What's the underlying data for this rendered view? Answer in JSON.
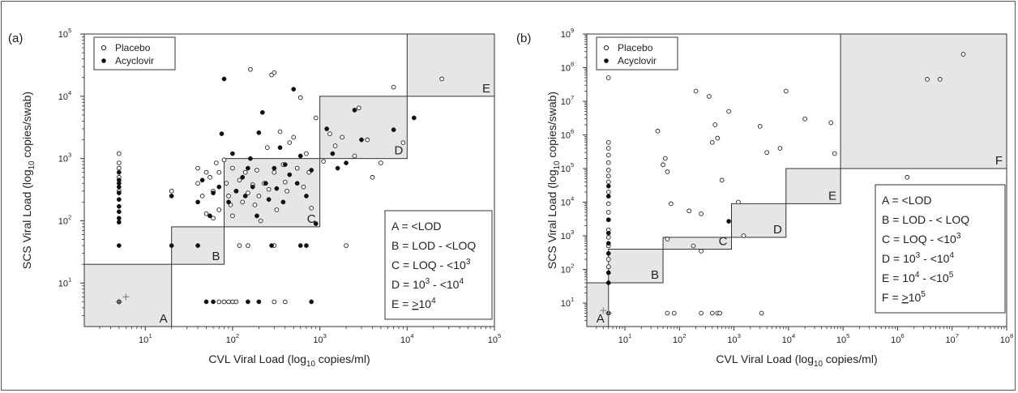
{
  "chart_data": [
    {
      "panel_label": "(a)",
      "type": "scatter",
      "xlabel": "CVL Viral Load (log10 copies/ml)",
      "ylabel": "SCS Viral Load (log10 copies/swab)",
      "x_scale": "log",
      "y_scale": "log",
      "xlim": [
        2,
        100000
      ],
      "ylim": [
        2,
        100000
      ],
      "x_ticks": [
        10,
        100,
        1000,
        10000,
        100000
      ],
      "y_ticks": [
        10,
        100,
        1000,
        10000,
        100000
      ],
      "legend_position": "top-left",
      "grid": false,
      "series": [
        {
          "name": "Placebo",
          "marker": "open-circle",
          "color": "#222222",
          "points": [
            [
              5,
              1200
            ],
            [
              5,
              850
            ],
            [
              5,
              700
            ],
            [
              5,
              500
            ],
            [
              5,
              300
            ],
            [
              20,
              300
            ],
            [
              40,
              700
            ],
            [
              40,
              400
            ],
            [
              45,
              250
            ],
            [
              50,
              600
            ],
            [
              50,
              130
            ],
            [
              55,
              500
            ],
            [
              60,
              300
            ],
            [
              60,
              110
            ],
            [
              65,
              850
            ],
            [
              70,
              150
            ],
            [
              70,
              600
            ],
            [
              80,
              950
            ],
            [
              85,
              400
            ],
            [
              90,
              250
            ],
            [
              95,
              180
            ],
            [
              100,
              700
            ],
            [
              100,
              120
            ],
            [
              110,
              300
            ],
            [
              120,
              450
            ],
            [
              130,
              200
            ],
            [
              140,
              600
            ],
            [
              150,
              280
            ],
            [
              160,
              27000
            ],
            [
              170,
              380
            ],
            [
              180,
              180
            ],
            [
              190,
              650
            ],
            [
              200,
              250
            ],
            [
              210,
              100
            ],
            [
              230,
              400
            ],
            [
              250,
              1500
            ],
            [
              260,
              320
            ],
            [
              280,
              22000
            ],
            [
              300,
              24000
            ],
            [
              300,
              600
            ],
            [
              320,
              150
            ],
            [
              350,
              2700
            ],
            [
              380,
              800
            ],
            [
              400,
              420
            ],
            [
              420,
              300
            ],
            [
              450,
              1800
            ],
            [
              500,
              2200
            ],
            [
              550,
              700
            ],
            [
              600,
              9500
            ],
            [
              650,
              350
            ],
            [
              700,
              1200
            ],
            [
              750,
              600
            ],
            [
              800,
              160
            ],
            [
              900,
              4500
            ],
            [
              1100,
              900
            ],
            [
              1300,
              2500
            ],
            [
              1500,
              1600
            ],
            [
              1800,
              2200
            ],
            [
              2000,
              40
            ],
            [
              2500,
              1100
            ],
            [
              2800,
              6500
            ],
            [
              3500,
              2000
            ],
            [
              4000,
              500
            ],
            [
              5000,
              850
            ],
            [
              7000,
              14000
            ],
            [
              9000,
              1800
            ],
            [
              25000,
              19000
            ],
            [
              120,
              40
            ],
            [
              150,
              40
            ],
            [
              300,
              40
            ],
            [
              70,
              5
            ],
            [
              80,
              5
            ],
            [
              90,
              5
            ],
            [
              100,
              5
            ],
            [
              110,
              5
            ],
            [
              300,
              5
            ],
            [
              400,
              5
            ]
          ]
        },
        {
          "name": "Acyclovir",
          "marker": "filled-circle",
          "color": "#111111",
          "points": [
            [
              5,
              600
            ],
            [
              5,
              450
            ],
            [
              5,
              400
            ],
            [
              5,
              350
            ],
            [
              5,
              280
            ],
            [
              5,
              220
            ],
            [
              5,
              170
            ],
            [
              5,
              140
            ],
            [
              5,
              110
            ],
            [
              5,
              95
            ],
            [
              5,
              40
            ],
            [
              5,
              5
            ],
            [
              20,
              250
            ],
            [
              20,
              40
            ],
            [
              40,
              200
            ],
            [
              40,
              40
            ],
            [
              45,
              450
            ],
            [
              55,
              120
            ],
            [
              60,
              280
            ],
            [
              70,
              350
            ],
            [
              75,
              2500
            ],
            [
              80,
              19000
            ],
            [
              90,
              200
            ],
            [
              100,
              1200
            ],
            [
              110,
              300
            ],
            [
              130,
              500
            ],
            [
              140,
              250
            ],
            [
              150,
              700
            ],
            [
              160,
              1000
            ],
            [
              170,
              350
            ],
            [
              190,
              120
            ],
            [
              200,
              2600
            ],
            [
              220,
              5500
            ],
            [
              240,
              400
            ],
            [
              260,
              220
            ],
            [
              300,
              700
            ],
            [
              320,
              330
            ],
            [
              350,
              1500
            ],
            [
              380,
              200
            ],
            [
              400,
              800
            ],
            [
              450,
              550
            ],
            [
              500,
              13000
            ],
            [
              550,
              400
            ],
            [
              600,
              1100
            ],
            [
              700,
              250
            ],
            [
              800,
              650
            ],
            [
              900,
              90
            ],
            [
              1200,
              3000
            ],
            [
              1400,
              1200
            ],
            [
              1600,
              700
            ],
            [
              2000,
              850
            ],
            [
              2500,
              6000
            ],
            [
              3000,
              2000
            ],
            [
              7000,
              2900
            ],
            [
              12000,
              4500
            ],
            [
              50,
              5
            ],
            [
              60,
              5
            ],
            [
              150,
              5
            ],
            [
              200,
              5
            ],
            [
              280,
              40
            ],
            [
              600,
              40
            ],
            [
              700,
              40
            ],
            [
              800,
              5
            ]
          ]
        },
        {
          "name": "",
          "marker": "plus",
          "color": "#888888",
          "points": [
            [
              6,
              6
            ],
            [
              5,
              5
            ]
          ]
        }
      ],
      "regions": [
        {
          "label": "A",
          "x": [
            2,
            20
          ],
          "y": [
            2,
            20
          ]
        },
        {
          "label": "B",
          "x": [
            20,
            80
          ],
          "y": [
            20,
            80
          ]
        },
        {
          "label": "C",
          "x": [
            80,
            1000
          ],
          "y": [
            80,
            1000
          ]
        },
        {
          "label": "D",
          "x": [
            1000,
            10000
          ],
          "y": [
            1000,
            10000
          ]
        },
        {
          "label": "E",
          "x": [
            10000,
            100000
          ],
          "y": [
            10000,
            100000
          ]
        }
      ],
      "key_lines": [
        "A = <LOD",
        "B = LOD - <LOQ",
        "C = LOQ - <10^3",
        "D = 10^3 - <10^4",
        "E = >10^4"
      ]
    },
    {
      "panel_label": "(b)",
      "type": "scatter",
      "xlabel": "CVL Viral Load (log10 copies/ml)",
      "ylabel": "SCS Viral Load (log10 copies/swab)",
      "x_scale": "log",
      "y_scale": "log",
      "xlim": [
        2,
        100000000
      ],
      "ylim": [
        2,
        1000000000
      ],
      "x_ticks": [
        10,
        100,
        1000,
        10000,
        100000,
        1000000,
        10000000,
        100000000
      ],
      "y_ticks": [
        10,
        100,
        1000,
        10000,
        100000,
        1000000,
        10000000,
        100000000,
        1000000000
      ],
      "legend_position": "top-left",
      "grid": false,
      "series": [
        {
          "name": "Placebo",
          "marker": "open-circle",
          "color": "#222222",
          "points": [
            [
              5,
              50000000
            ],
            [
              5,
              600000
            ],
            [
              5,
              400000
            ],
            [
              5,
              250000
            ],
            [
              5,
              150000
            ],
            [
              5,
              90000
            ],
            [
              5,
              60000
            ],
            [
              5,
              40000
            ],
            [
              5,
              20000
            ],
            [
              5,
              9000
            ],
            [
              5,
              5000
            ],
            [
              5,
              3000
            ],
            [
              5,
              1500
            ],
            [
              5,
              900
            ],
            [
              5,
              500
            ],
            [
              5,
              200
            ],
            [
              5,
              120
            ],
            [
              40,
              1300000
            ],
            [
              50,
              130000
            ],
            [
              55,
              200000
            ],
            [
              60,
              80000
            ],
            [
              70,
              9000
            ],
            [
              60,
              800
            ],
            [
              150,
              5500
            ],
            [
              180,
              500
            ],
            [
              200,
              20000000
            ],
            [
              250,
              4500
            ],
            [
              250,
              350
            ],
            [
              350,
              14000000
            ],
            [
              400,
              600000
            ],
            [
              450,
              2000000
            ],
            [
              500,
              800000
            ],
            [
              600,
              45000
            ],
            [
              800,
              5000000
            ],
            [
              1200,
              10000
            ],
            [
              1500,
              1000
            ],
            [
              3000,
              1800000
            ],
            [
              4000,
              300000
            ],
            [
              7000,
              400000
            ],
            [
              9000,
              20000000
            ],
            [
              20000,
              3000000
            ],
            [
              60000,
              2300000
            ],
            [
              70000,
              280000
            ],
            [
              1500000,
              55000
            ],
            [
              3500000,
              45000000
            ],
            [
              6000000,
              45000000
            ],
            [
              16000000,
              250000000
            ],
            [
              60,
              5
            ],
            [
              80,
              5
            ],
            [
              250,
              5
            ],
            [
              400,
              5
            ],
            [
              500,
              5
            ],
            [
              550,
              5
            ],
            [
              3200,
              5
            ]
          ]
        },
        {
          "name": "Acyclovir",
          "marker": "filled-circle",
          "color": "#111111",
          "points": [
            [
              5,
              30000
            ],
            [
              5,
              15000
            ],
            [
              5,
              3000
            ],
            [
              5,
              1200
            ],
            [
              5,
              600
            ],
            [
              5,
              300
            ],
            [
              5,
              80
            ],
            [
              5,
              40
            ],
            [
              5,
              5
            ],
            [
              800,
              2700
            ]
          ]
        },
        {
          "name": "",
          "marker": "plus",
          "color": "#888888",
          "points": [
            [
              4,
              6
            ],
            [
              5,
              5
            ]
          ]
        }
      ],
      "regions": [
        {
          "label": "A",
          "x": [
            2,
            5
          ],
          "y": [
            2,
            40
          ]
        },
        {
          "label": "B",
          "x": [
            5,
            50
          ],
          "y": [
            40,
            400
          ]
        },
        {
          "label": "C",
          "x": [
            50,
            900
          ],
          "y": [
            400,
            900
          ]
        },
        {
          "label": "D",
          "x": [
            900,
            9000
          ],
          "y": [
            900,
            9000
          ]
        },
        {
          "label": "E",
          "x": [
            9000,
            90000
          ],
          "y": [
            9000,
            100000
          ]
        },
        {
          "label": "F",
          "x": [
            90000,
            100000000
          ],
          "y": [
            100000,
            1000000000
          ]
        }
      ],
      "key_lines": [
        "A = <LOD",
        "B = LOD - < LOQ",
        "C = LOQ - <10^3",
        "D = 10^3 - <10^4",
        "E = 10^4 - <10^5",
        "F = >10^5"
      ]
    }
  ]
}
